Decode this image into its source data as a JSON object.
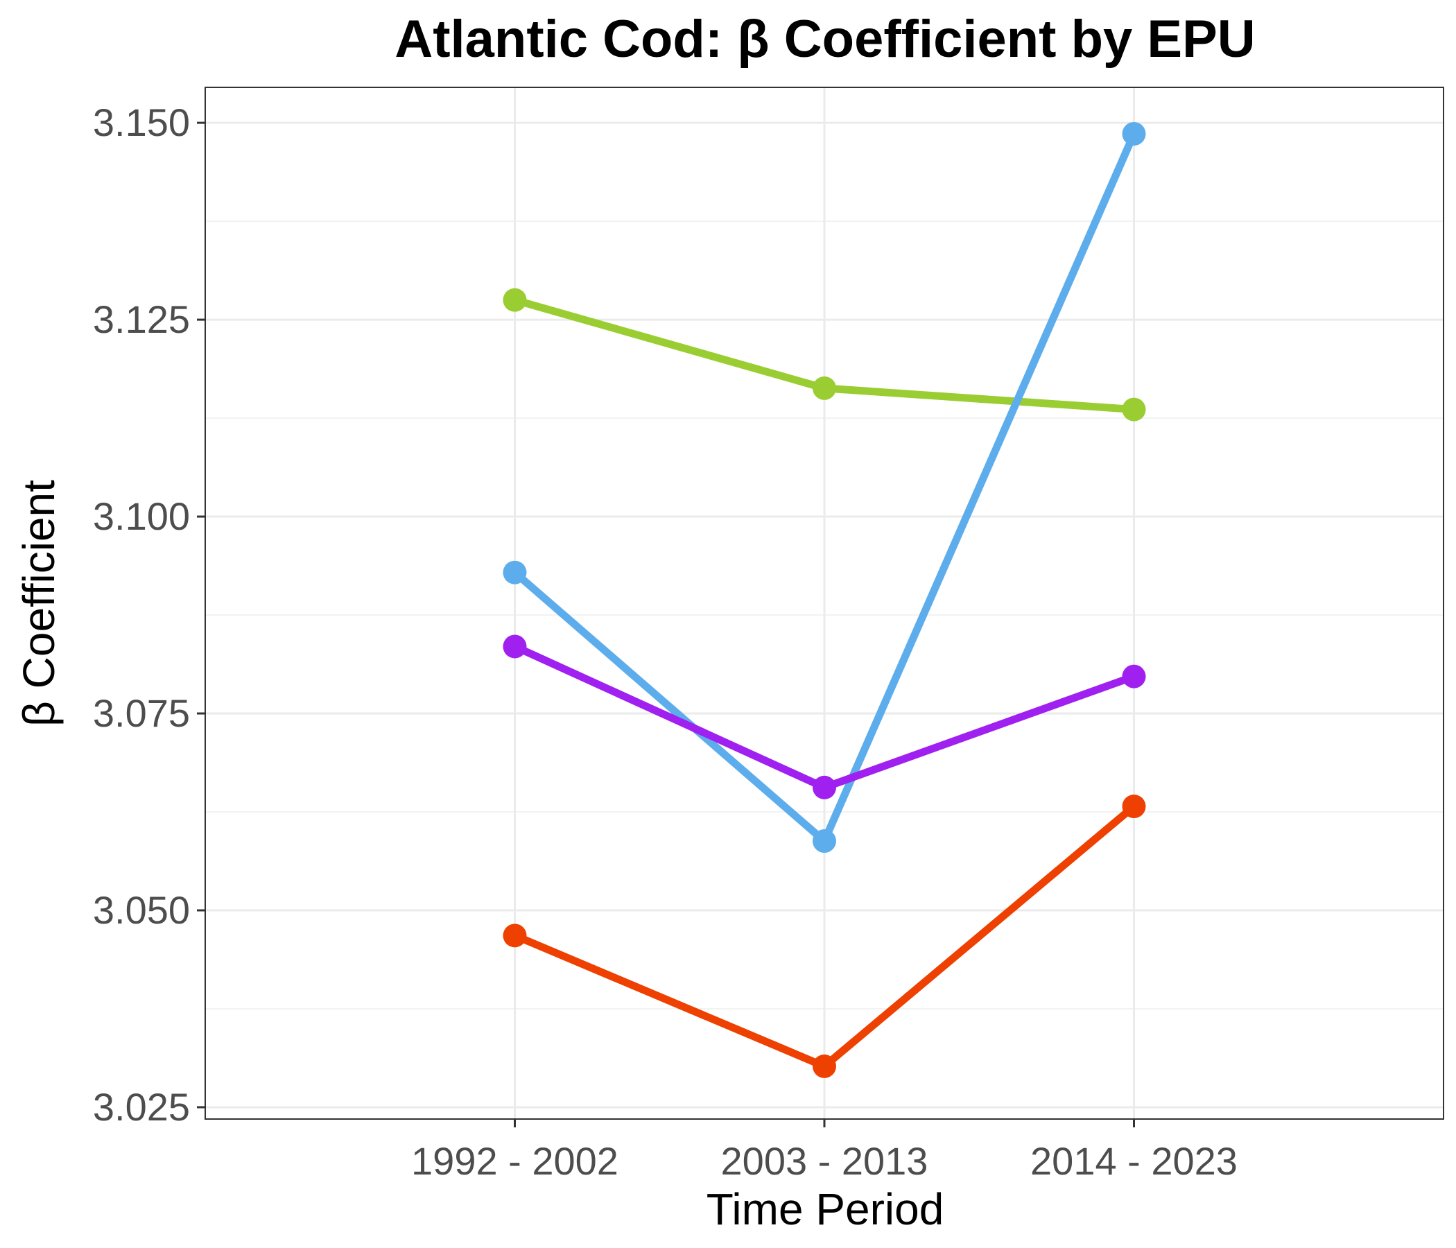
{
  "chart_data": {
    "type": "line",
    "title": "Atlantic Cod: β Coefficient by EPU",
    "xlabel": "Time Period",
    "ylabel": "β Coefficient",
    "categories": [
      "1992 - 2002",
      "2003 - 2013",
      "2014 - 2023"
    ],
    "ylim": [
      3.0235,
      3.1545
    ],
    "yticks": [
      "3.025",
      "3.050",
      "3.075",
      "3.100",
      "3.125",
      "3.150"
    ],
    "grid": true,
    "legend": "none",
    "series": [
      {
        "color": "#9ACD32",
        "values": [
          3.1275,
          3.1163,
          3.1136
        ]
      },
      {
        "color": "#5DADEC",
        "values": [
          3.0929,
          3.0588,
          3.1486
        ]
      },
      {
        "color": "#A020F0",
        "values": [
          3.0835,
          3.0656,
          3.0797
        ]
      },
      {
        "color": "#EE4000",
        "values": [
          3.0468,
          3.0302,
          3.0632
        ]
      }
    ]
  }
}
